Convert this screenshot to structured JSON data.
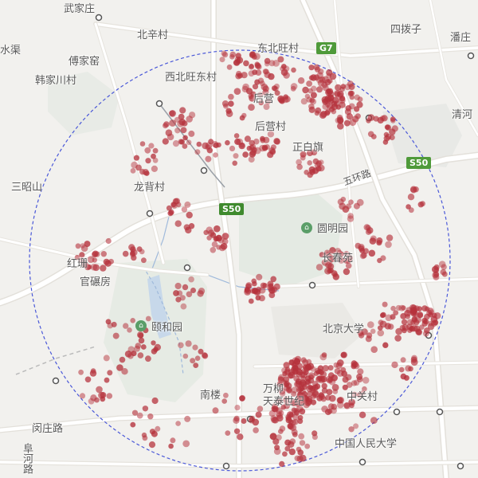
{
  "map": {
    "colors": {
      "background": "#f2f1ee",
      "road_major": "#ffffff",
      "road_casing": "#e3e0da",
      "water": "#b8cfe6",
      "water_line": "#9fb9db",
      "park": "#e6ebe4",
      "campus": "#e9e8e4",
      "point": "#b5323c",
      "circle": "#4a58d8"
    },
    "labels": {
      "wujiazhuang": "武家庄",
      "beixincun": "北辛村",
      "dongbeiwangcun": "东北旺村",
      "g7": "G7",
      "sibozi": "四拨子",
      "panli": "潘庄",
      "shuiqu": "水渠",
      "chuanjiayao": "傅家窑",
      "hanjiachuancun": "韩家川村",
      "xibeiwangdongcun": "西北旺东村",
      "houying": "后营",
      "qinghe": "清河",
      "houyingcun": "后营村",
      "zhengbaiqi": "正白旗",
      "s50_east": "S50",
      "sanzhaoshan": "三昭山",
      "longbeicun": "龙背村",
      "wuhuanlu": "五环路",
      "s50_center": "S50",
      "yuanmingyuan": "圆明园",
      "changchunyuan": "长春苑",
      "honghong": "红珊",
      "guanyufang": "官碾房",
      "yiheyuan": "颐和园",
      "beijingdaxue": "北京大学",
      "nanlou": "南楼",
      "wanliu": "万柳",
      "tianmaoshiji": "天泰世纪",
      "zhongguancun": "中关村",
      "minzhuanglu": "闵庄路",
      "renmindaxue": "中国人民大学",
      "heheilu": "阜河路"
    },
    "icons": [
      "park-icon",
      "park-icon",
      "shield-icon"
    ]
  }
}
